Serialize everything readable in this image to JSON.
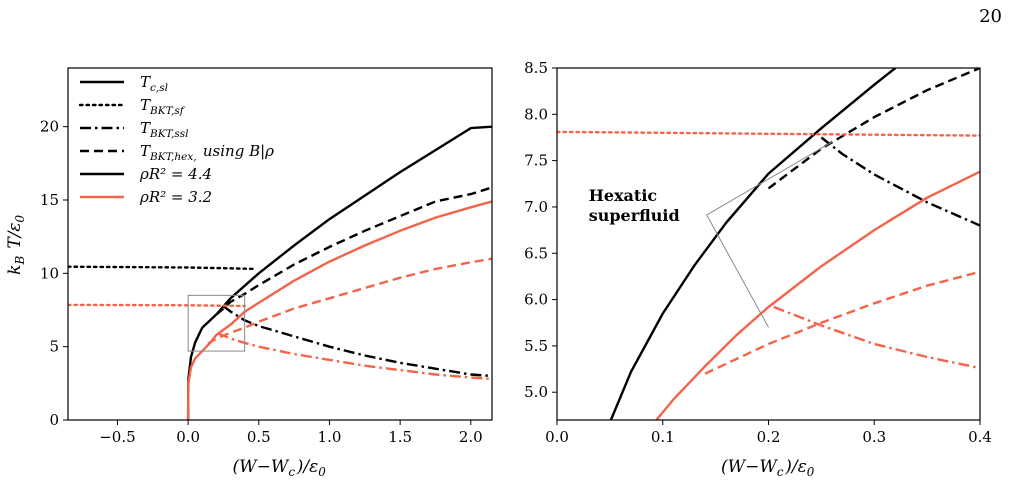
{
  "page_number": "20",
  "colors": {
    "black": "#000000",
    "coral": "#f4634a",
    "zoom_box": "#888888"
  },
  "chart_data": [
    {
      "type": "line",
      "panel": "left",
      "xlabel": "(W−W_c)/ε_0",
      "ylabel": "k_B T/ε_0",
      "xlim": [
        -0.85,
        2.15
      ],
      "ylim": [
        0,
        24
      ],
      "xticks": [
        -0.5,
        0.0,
        0.5,
        1.0,
        1.5,
        2.0
      ],
      "xtick_labels": [
        "−0.5",
        "0.0",
        "0.5",
        "1.0",
        "1.5",
        "2.0"
      ],
      "yticks": [
        0,
        5,
        10,
        15,
        20
      ],
      "ytick_labels": [
        "0",
        "5",
        "10",
        "15",
        "20"
      ],
      "legend_position": "top-left",
      "legend": [
        {
          "label": "T_c,sl",
          "style": "solid",
          "color": "#000000"
        },
        {
          "label": "T_BKT,sf",
          "style": "dotted",
          "color": "#000000"
        },
        {
          "label": "T_BKT,ssl",
          "style": "dashdot",
          "color": "#000000"
        },
        {
          "label": "T_BKT,hex, using B|ρ",
          "style": "dashed",
          "color": "#000000"
        },
        {
          "label": "ρR² = 4.4",
          "style": "solid",
          "color": "#000000"
        },
        {
          "label": "ρR² = 3.2",
          "style": "solid",
          "color": "#f4634a"
        }
      ],
      "inset_box": {
        "x": [
          0.0,
          0.4
        ],
        "y": [
          4.7,
          8.5
        ]
      },
      "series": [
        {
          "group": "4.4",
          "kind": "solid",
          "color": "#000000",
          "x": [
            0.0,
            0.002,
            0.02,
            0.05,
            0.1,
            0.2,
            0.3,
            0.5,
            0.75,
            1.0,
            1.25,
            1.5,
            1.75,
            2.0,
            2.15
          ],
          "y": [
            0.0,
            2.8,
            4.3,
            5.3,
            6.3,
            7.2,
            8.3,
            10.0,
            11.9,
            13.7,
            15.3,
            16.9,
            18.4,
            19.9,
            20.0
          ]
        },
        {
          "group": "4.4",
          "kind": "dotted",
          "color": "#000000",
          "x": [
            -0.85,
            0.0,
            0.25,
            0.47
          ],
          "y": [
            10.45,
            10.4,
            10.35,
            10.3
          ]
        },
        {
          "group": "4.4",
          "kind": "dashed",
          "color": "#000000",
          "x": [
            0.2,
            0.25,
            0.3,
            0.4,
            0.5,
            0.75,
            1.0,
            1.25,
            1.5,
            1.75,
            2.0,
            2.15
          ],
          "y": [
            7.2,
            7.6,
            8.05,
            8.6,
            9.2,
            10.6,
            11.8,
            12.9,
            13.9,
            14.9,
            15.4,
            15.85
          ]
        },
        {
          "group": "4.4",
          "kind": "dashdot",
          "color": "#000000",
          "x": [
            0.25,
            0.3,
            0.4,
            0.5,
            0.75,
            1.0,
            1.25,
            1.5,
            1.75,
            2.0,
            2.15
          ],
          "y": [
            7.75,
            7.4,
            6.8,
            6.4,
            5.7,
            5.0,
            4.4,
            3.9,
            3.5,
            3.1,
            3.0
          ]
        },
        {
          "group": "3.2",
          "kind": "solid",
          "color": "#f4634a",
          "x": [
            0.0,
            0.002,
            0.02,
            0.05,
            0.1,
            0.15,
            0.2,
            0.3,
            0.4,
            0.5,
            0.75,
            1.0,
            1.25,
            1.5,
            1.75,
            2.0,
            2.15
          ],
          "y": [
            0.0,
            2.5,
            3.6,
            4.2,
            4.7,
            5.2,
            5.8,
            6.5,
            7.38,
            8.0,
            9.5,
            10.8,
            11.9,
            12.9,
            13.8,
            14.5,
            14.9
          ]
        },
        {
          "group": "3.2",
          "kind": "dotted",
          "color": "#f4634a",
          "x": [
            -0.85,
            0.0,
            0.2,
            0.4
          ],
          "y": [
            7.85,
            7.82,
            7.8,
            7.77
          ]
        },
        {
          "group": "3.2",
          "kind": "dashed",
          "color": "#f4634a",
          "x": [
            0.14,
            0.2,
            0.3,
            0.4,
            0.5,
            0.75,
            1.0,
            1.25,
            1.5,
            1.75,
            2.0,
            2.15
          ],
          "y": [
            5.2,
            5.55,
            5.95,
            6.3,
            6.7,
            7.6,
            8.3,
            9.0,
            9.7,
            10.3,
            10.75,
            11.0
          ]
        },
        {
          "group": "3.2",
          "kind": "dashdot",
          "color": "#f4634a",
          "x": [
            0.21,
            0.25,
            0.3,
            0.4,
            0.5,
            0.75,
            1.0,
            1.25,
            1.5,
            1.75,
            2.0,
            2.15
          ],
          "y": [
            5.9,
            5.75,
            5.55,
            5.26,
            5.0,
            4.5,
            4.1,
            3.7,
            3.4,
            3.1,
            2.9,
            2.8
          ]
        }
      ]
    },
    {
      "type": "line",
      "panel": "right",
      "xlabel": "(W−W_c)/ε_0",
      "ylabel": "",
      "xlim": [
        0.0,
        0.4
      ],
      "ylim": [
        4.7,
        8.5
      ],
      "xticks": [
        0.0,
        0.1,
        0.2,
        0.3,
        0.4
      ],
      "xtick_labels": [
        "0.0",
        "0.1",
        "0.2",
        "0.3",
        "0.4"
      ],
      "yticks": [
        5.0,
        5.5,
        6.0,
        6.5,
        7.0,
        7.5,
        8.0,
        8.5
      ],
      "ytick_labels": [
        "5.0",
        "5.5",
        "6.0",
        "6.5",
        "7.0",
        "7.5",
        "8.0",
        "8.5"
      ],
      "annotation": {
        "line1": "Hexatic",
        "line2": "superfluid",
        "x": 0.03,
        "y": 7.0,
        "pointer_region": {
          "x": [
            0.2,
            0.26
          ],
          "y": [
            5.7,
            7.7
          ]
        }
      },
      "series": [
        {
          "group": "4.4",
          "kind": "solid",
          "color": "#000000",
          "x": [
            0.051,
            0.07,
            0.1,
            0.13,
            0.16,
            0.2,
            0.25,
            0.3,
            0.32
          ],
          "y": [
            4.7,
            5.22,
            5.85,
            6.37,
            6.83,
            7.36,
            7.85,
            8.32,
            8.5
          ]
        },
        {
          "group": "4.4",
          "kind": "dashed",
          "color": "#000000",
          "x": [
            0.2,
            0.25,
            0.3,
            0.35,
            0.4
          ],
          "y": [
            7.2,
            7.63,
            7.97,
            8.26,
            8.5
          ]
        },
        {
          "group": "4.4",
          "kind": "dashdot",
          "color": "#000000",
          "x": [
            0.25,
            0.27,
            0.3,
            0.35,
            0.4
          ],
          "y": [
            7.75,
            7.57,
            7.35,
            7.05,
            6.8
          ]
        },
        {
          "group": "3.2",
          "kind": "solid",
          "color": "#f4634a",
          "x": [
            0.094,
            0.11,
            0.14,
            0.17,
            0.2,
            0.25,
            0.3,
            0.35,
            0.4
          ],
          "y": [
            4.7,
            4.92,
            5.28,
            5.62,
            5.92,
            6.36,
            6.75,
            7.1,
            7.38
          ]
        },
        {
          "group": "3.2",
          "kind": "dotted",
          "color": "#f4634a",
          "x": [
            0.0,
            0.1,
            0.2,
            0.3,
            0.4
          ],
          "y": [
            7.81,
            7.8,
            7.79,
            7.78,
            7.77
          ]
        },
        {
          "group": "3.2",
          "kind": "dashed",
          "color": "#f4634a",
          "x": [
            0.14,
            0.2,
            0.25,
            0.3,
            0.35,
            0.4
          ],
          "y": [
            5.2,
            5.52,
            5.75,
            5.96,
            6.15,
            6.3
          ]
        },
        {
          "group": "3.2",
          "kind": "dashdot",
          "color": "#f4634a",
          "x": [
            0.205,
            0.25,
            0.3,
            0.35,
            0.4
          ],
          "y": [
            5.92,
            5.72,
            5.52,
            5.38,
            5.26
          ]
        }
      ]
    }
  ]
}
